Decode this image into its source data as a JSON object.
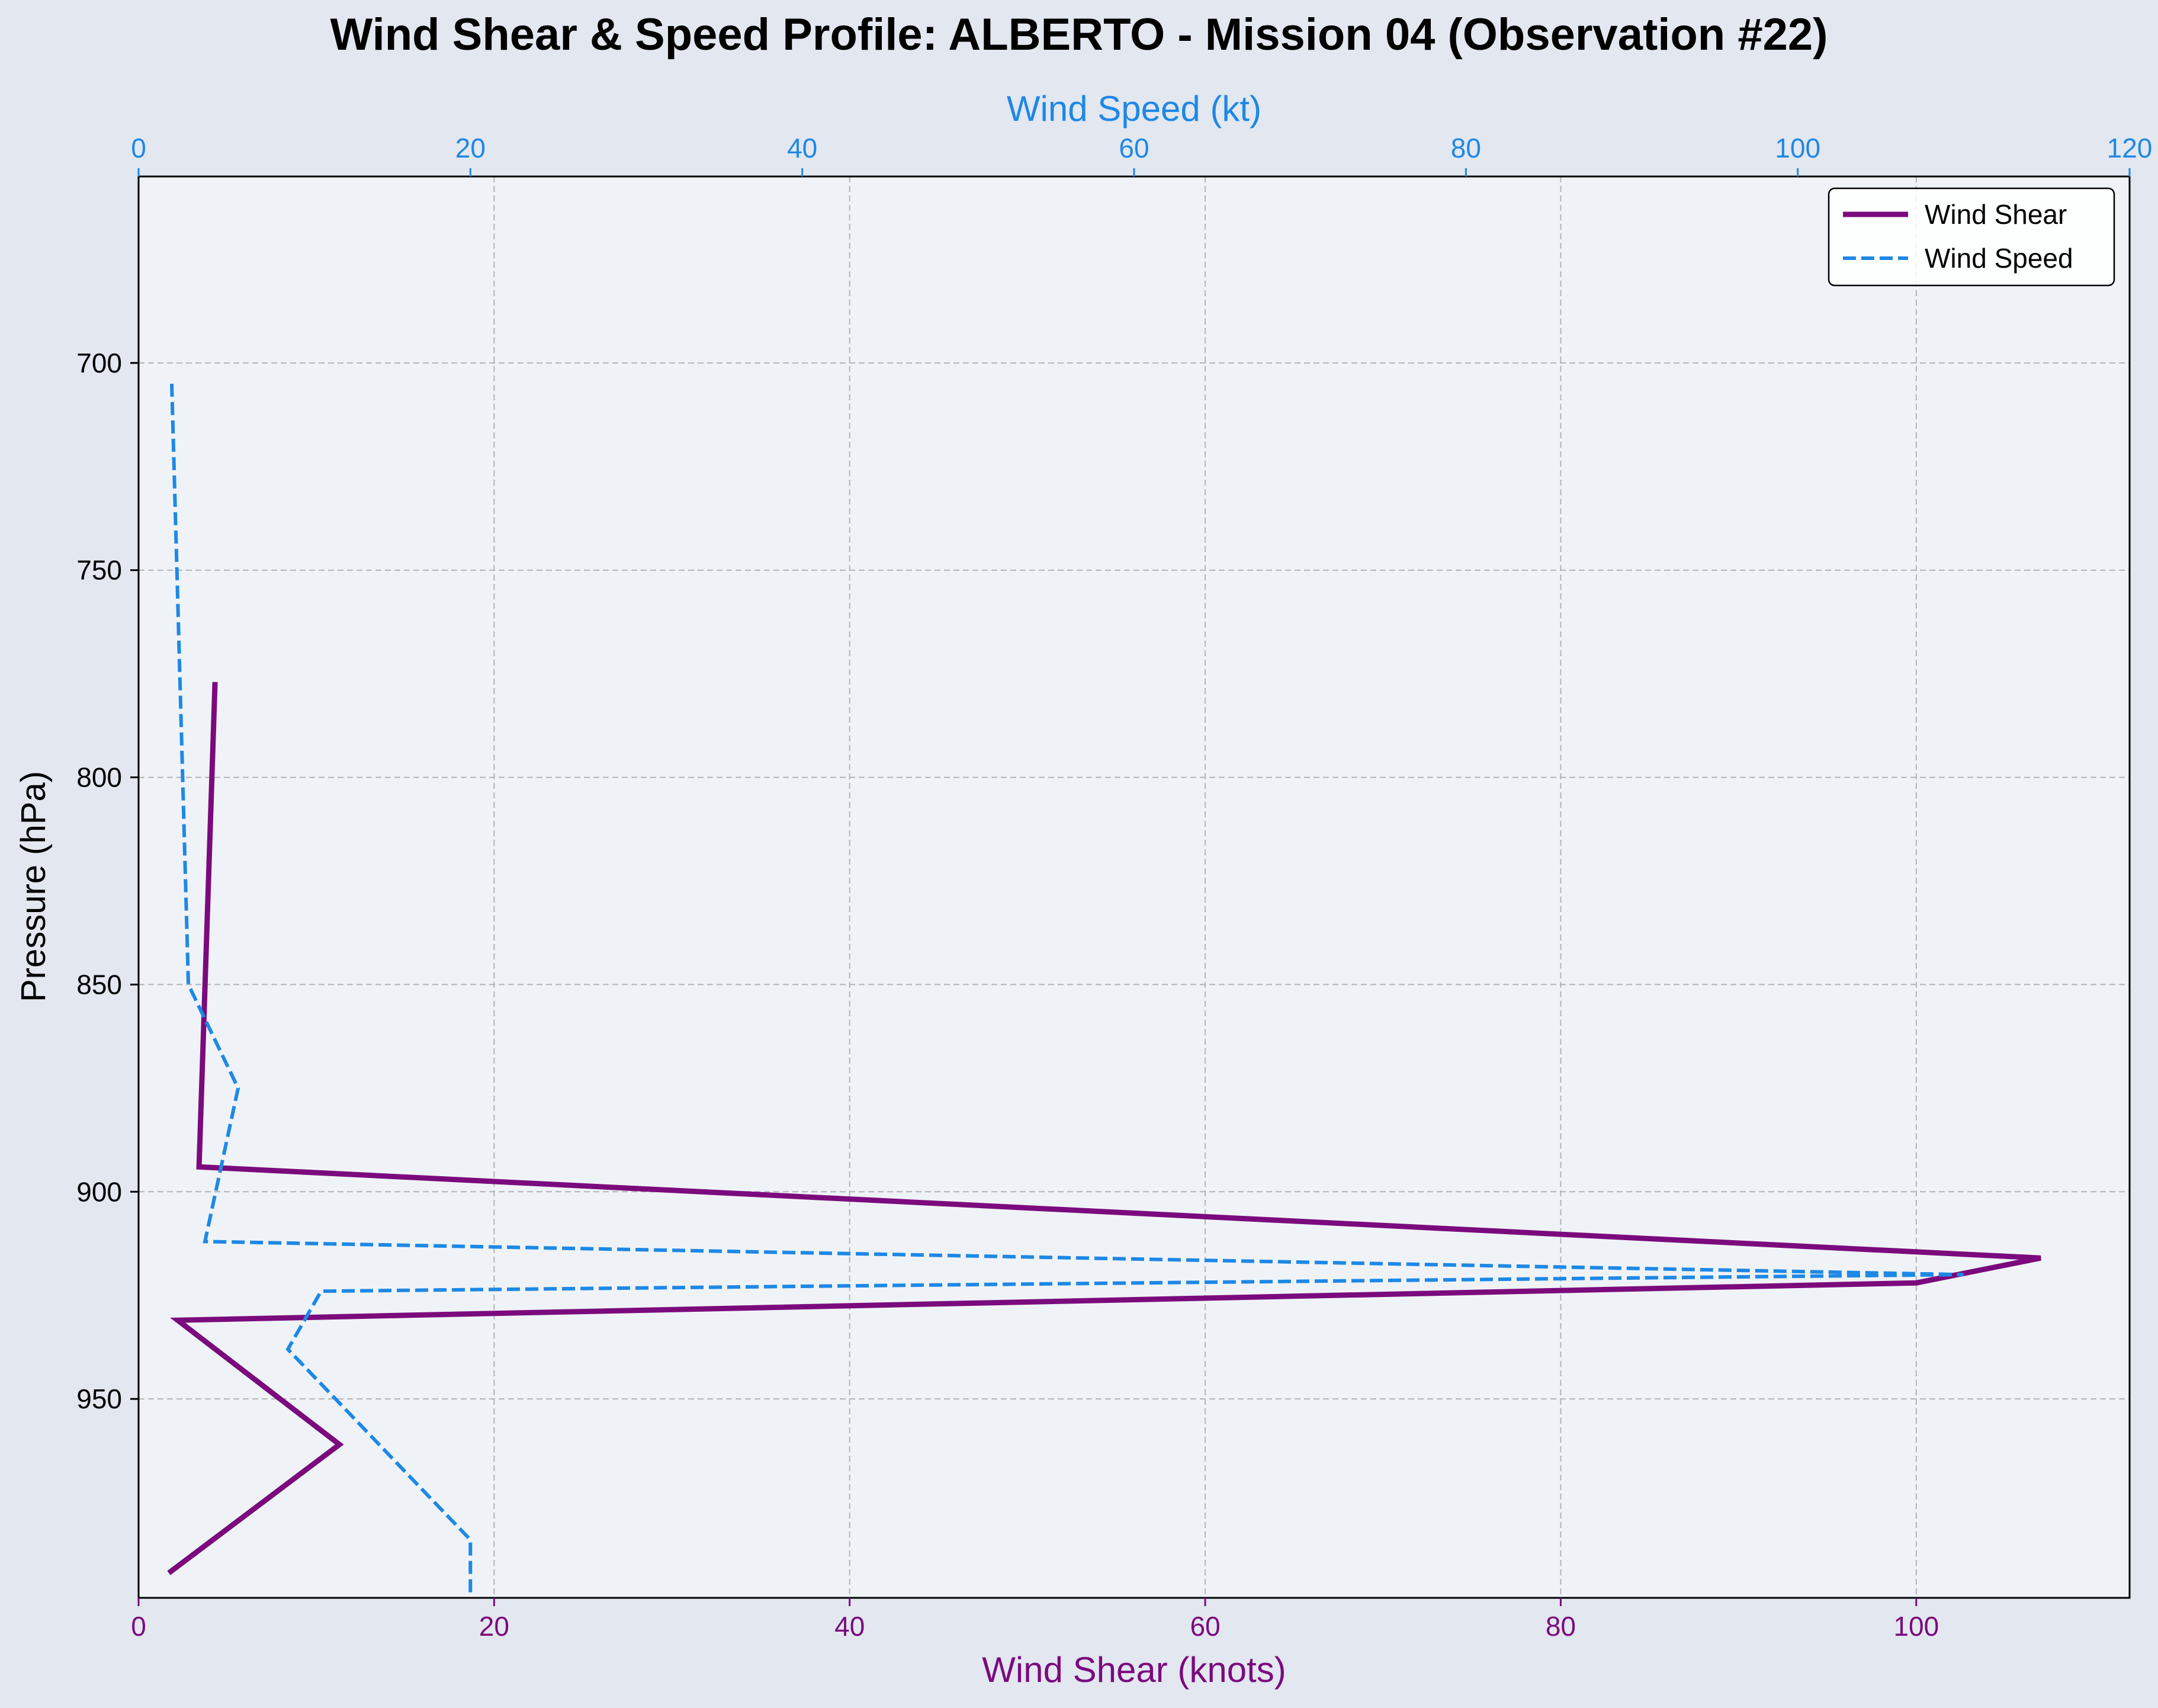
{
  "chart_data": {
    "type": "line",
    "title": "Wind Shear & Speed Profile: ALBERTO - Mission 04 (Observation #22)",
    "y_axis": {
      "label": "Pressure (hPa)",
      "range": [
        655,
        998
      ],
      "inverted": true,
      "ticks": [
        "700",
        "750",
        "800",
        "850",
        "900",
        "950"
      ]
    },
    "x_axis_bottom": {
      "label": "Wind Shear (knots)",
      "range": [
        0,
        112
      ],
      "ticks": [
        "0",
        "20",
        "40",
        "60",
        "80",
        "100"
      ],
      "color": "#7b0a7d"
    },
    "x_axis_top": {
      "label": "Wind Speed (kt)",
      "range": [
        0,
        120
      ],
      "ticks": [
        "0",
        "20",
        "40",
        "60",
        "80",
        "100",
        "120"
      ],
      "color": "#1e88e5"
    },
    "grid": true,
    "legend": {
      "position": "top-right"
    },
    "series": [
      {
        "name": "Wind Shear",
        "axis": "bottom",
        "color": "#7b0a7d",
        "style": "solid",
        "points": [
          {
            "x": 4.3,
            "y": 777
          },
          {
            "x": 3.4,
            "y": 894
          },
          {
            "x": 107,
            "y": 916
          },
          {
            "x": 100,
            "y": 922
          },
          {
            "x": 2.2,
            "y": 931
          },
          {
            "x": 11.3,
            "y": 961
          },
          {
            "x": 1.7,
            "y": 992
          }
        ]
      },
      {
        "name": "Wind Speed",
        "axis": "top",
        "color": "#1e88e5",
        "style": "dashed",
        "points": [
          {
            "x": 2.0,
            "y": 705
          },
          {
            "x": 3.0,
            "y": 850
          },
          {
            "x": 6.0,
            "y": 875
          },
          {
            "x": 4.0,
            "y": 912
          },
          {
            "x": 110,
            "y": 920
          },
          {
            "x": 11.0,
            "y": 924
          },
          {
            "x": 9.0,
            "y": 938
          },
          {
            "x": 20.0,
            "y": 984
          },
          {
            "x": 20.0,
            "y": 998
          }
        ]
      }
    ]
  }
}
